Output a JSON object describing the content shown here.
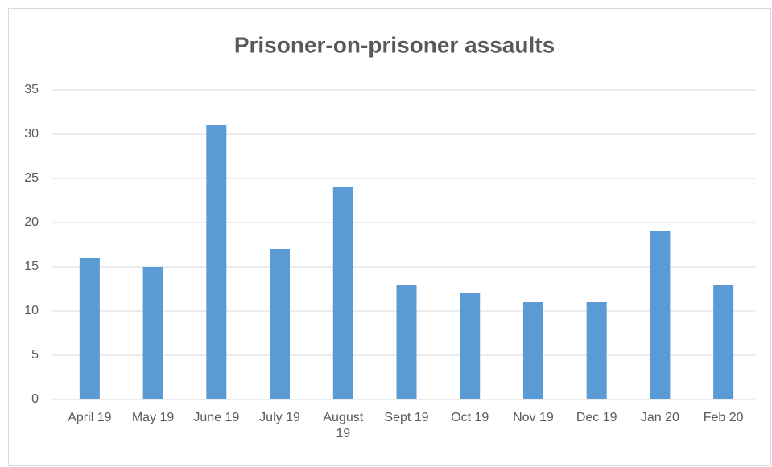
{
  "chart_data": {
    "type": "bar",
    "title": "Prisoner-on-prisoner assaults",
    "categories": [
      "April 19",
      "May 19",
      "June 19",
      "July 19",
      "August 19",
      "Sept 19",
      "Oct 19",
      "Nov 19",
      "Dec 19",
      "Jan 20",
      "Feb 20"
    ],
    "values": [
      16,
      15,
      31,
      17,
      24,
      13,
      12,
      11,
      11,
      19,
      13
    ],
    "color": "#5b9bd5",
    "ylim": [
      0,
      35
    ],
    "yticks": [
      0,
      5,
      10,
      15,
      20,
      25,
      30,
      35
    ],
    "grid": true
  }
}
